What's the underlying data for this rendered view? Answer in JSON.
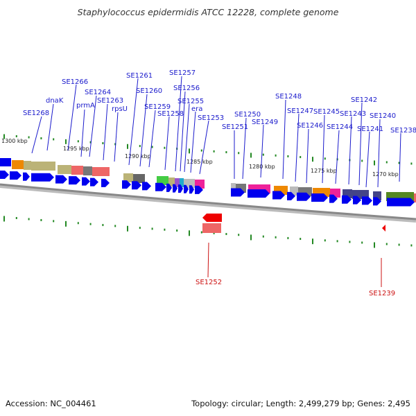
{
  "title": "Staphylococcus epidermidis ATCC 12228, complete genome",
  "footer": {
    "accession": "Accession: NC_004461",
    "summary": "Topology: circular; Length: 2,499,279 bp; Genes: 2,495"
  },
  "colors": {
    "forward_gene": "#0000ee",
    "reverse_gene": "#ee0000",
    "forward_label": "#1a1acc",
    "reverse_label": "#cc1111",
    "tick": "#228822",
    "backbone": "#888888"
  },
  "scale_labels": [
    "1300 kbp",
    "1295 kbp",
    "1290 kbp",
    "1285 kbp",
    "1280 kbp",
    "1275 kbp",
    "1270 kbp"
  ],
  "forward_genes": [
    "SE1268",
    "dnaK",
    "SE1266",
    "prmA",
    "SE1264",
    "SE1263",
    "rpsU",
    "SE1261",
    "SE1260",
    "SE1259",
    "SE1258",
    "SE1257",
    "SE1256",
    "SE1255",
    "era",
    "SE1253",
    "SE1251",
    "SE1250",
    "SE1249",
    "SE1248",
    "SE1247",
    "SE1246",
    "SE1245",
    "SE1244",
    "SE1243",
    "SE1242",
    "SE1241",
    "SE1240",
    "SE1238"
  ],
  "reverse_genes": [
    "SE1252",
    "SE1239"
  ]
}
